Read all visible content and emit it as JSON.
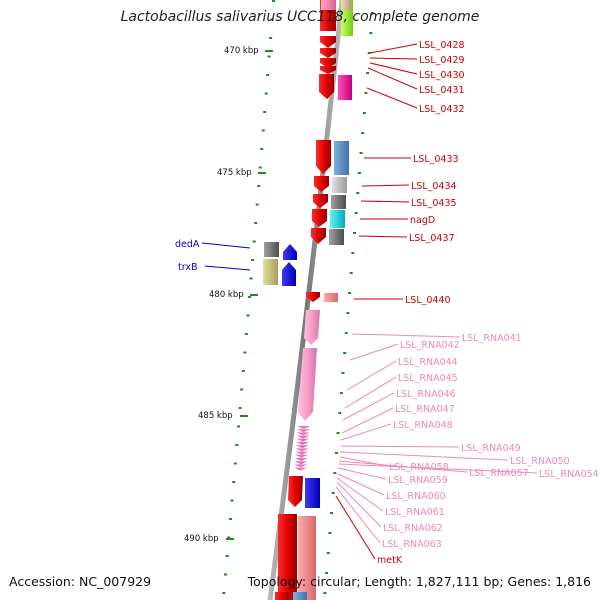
{
  "title": "Lactobacillus salivarius UCC118, complete genome",
  "accession_text": "Accession: NC_007929",
  "topology_text": "Topology: circular; Length: 1,827,111 bp; Genes: 1,816",
  "ruler": {
    "labels": [
      "470 kbp",
      "475 kbp",
      "480 kbp",
      "485 kbp",
      "490 kbp"
    ]
  },
  "features": {
    "right_labels": [
      {
        "text": "LSL_0428",
        "type": "protein"
      },
      {
        "text": "LSL_0429",
        "type": "protein"
      },
      {
        "text": "LSL_0430",
        "type": "protein"
      },
      {
        "text": "LSL_0431",
        "type": "protein"
      },
      {
        "text": "LSL_0432",
        "type": "protein"
      },
      {
        "text": "LSL_0433",
        "type": "protein"
      },
      {
        "text": "LSL_0434",
        "type": "protein"
      },
      {
        "text": "LSL_0435",
        "type": "protein"
      },
      {
        "text": "nagD",
        "type": "protein"
      },
      {
        "text": "LSL_0437",
        "type": "protein"
      },
      {
        "text": "LSL_0440",
        "type": "protein"
      },
      {
        "text": "LSL_RNA041",
        "type": "rna"
      },
      {
        "text": "LSL_RNA042",
        "type": "rna"
      },
      {
        "text": "LSL_RNA044",
        "type": "rna"
      },
      {
        "text": "LSL_RNA045",
        "type": "rna"
      },
      {
        "text": "LSL_RNA046",
        "type": "rna"
      },
      {
        "text": "LSL_RNA047",
        "type": "rna"
      },
      {
        "text": "LSL_RNA048",
        "type": "rna"
      },
      {
        "text": "LSL_RNA049",
        "type": "rna"
      },
      {
        "text": "LSL_RNA050",
        "type": "rna"
      },
      {
        "text": "LSL_RNA058",
        "type": "rna"
      },
      {
        "text": "LSL_RNA057",
        "type": "rna"
      },
      {
        "text": "LSL_RNA054",
        "type": "rna"
      },
      {
        "text": "LSL_RNA059",
        "type": "rna"
      },
      {
        "text": "LSL_RNA060",
        "type": "rna"
      },
      {
        "text": "LSL_RNA061",
        "type": "rna"
      },
      {
        "text": "LSL_RNA062",
        "type": "rna"
      },
      {
        "text": "LSL_RNA063",
        "type": "rna"
      },
      {
        "text": "metK",
        "type": "protein"
      }
    ],
    "left_labels": [
      {
        "text": "dedA",
        "type": "gene"
      },
      {
        "text": "trxB",
        "type": "gene"
      }
    ]
  },
  "colors": {
    "protein": "#cc0000",
    "rna": "#ee88bb",
    "gene": "#0000cc",
    "tick": "#228822",
    "backbone": "#888888"
  }
}
